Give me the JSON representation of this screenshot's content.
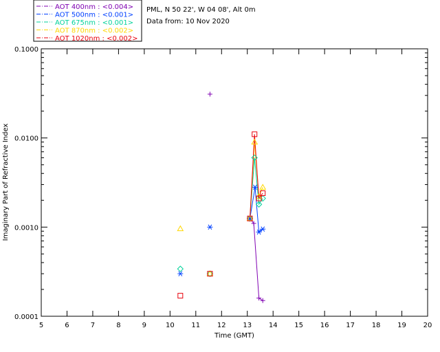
{
  "chart_data": {
    "type": "scatter",
    "header": {
      "line1": "PML, N 50 22', W 04 08', Alt 0m",
      "line2": "Data from: 10 Nov 2020"
    },
    "xlabel": "Time (GMT)",
    "ylabel": "Imaginary Part of Refractive Index",
    "xlim": [
      5,
      20
    ],
    "ylim": [
      0.0001,
      0.1
    ],
    "yscale": "log",
    "x_ticks": [
      "5",
      "6",
      "7",
      "8",
      "9",
      "10",
      "11",
      "12",
      "13",
      "14",
      "15",
      "16",
      "17",
      "18",
      "19",
      "20"
    ],
    "y_ticks": [
      {
        "value": 0.0001,
        "label": "0.0001"
      },
      {
        "value": 0.001,
        "label": "0.0010"
      },
      {
        "value": 0.01,
        "label": "0.0100"
      },
      {
        "value": 0.1,
        "label": "0.1000"
      }
    ],
    "legend_position": "top-left, outside plot",
    "series": [
      {
        "name": "AOT  400nm : <0.004>",
        "color": "#7f00b2",
        "marker": "plus",
        "points": [
          [
            11.55,
            0.031
          ],
          [
            13.1,
            0.00125
          ],
          [
            13.25,
            0.0011
          ],
          [
            13.45,
            0.00016
          ],
          [
            13.6,
            0.00015
          ]
        ],
        "line": [
          [
            13.1,
            0.00125
          ],
          [
            13.25,
            0.0011
          ],
          [
            13.45,
            0.00016
          ],
          [
            13.6,
            0.00015
          ]
        ]
      },
      {
        "name": "AOT  500nm : <0.001>",
        "color": "#0040ff",
        "marker": "asterisk",
        "points": [
          [
            10.4,
            0.0003
          ],
          [
            11.55,
            0.001
          ],
          [
            13.1,
            0.00125
          ],
          [
            13.3,
            0.0028
          ],
          [
            13.45,
            0.00088
          ],
          [
            13.6,
            0.00095
          ]
        ],
        "line": [
          [
            13.1,
            0.00125
          ],
          [
            13.3,
            0.0028
          ],
          [
            13.45,
            0.00088
          ],
          [
            13.6,
            0.00095
          ]
        ]
      },
      {
        "name": "AOT  675nm : <0.001>",
        "color": "#00d29a",
        "marker": "diamond",
        "points": [
          [
            10.4,
            0.00034
          ],
          [
            11.55,
            0.0003
          ],
          [
            13.1,
            0.00125
          ],
          [
            13.28,
            0.006
          ],
          [
            13.45,
            0.0018
          ],
          [
            13.6,
            0.0021
          ]
        ],
        "line": [
          [
            13.1,
            0.00125
          ],
          [
            13.28,
            0.006
          ],
          [
            13.45,
            0.0018
          ],
          [
            13.6,
            0.0021
          ]
        ]
      },
      {
        "name": "AOT  870nm : <0.002>",
        "color": "#ffd700",
        "marker": "triangle",
        "points": [
          [
            10.4,
            0.00096
          ],
          [
            11.55,
            0.0003
          ],
          [
            13.1,
            0.00125
          ],
          [
            13.28,
            0.009
          ],
          [
            13.45,
            0.0022
          ],
          [
            13.6,
            0.0028
          ]
        ],
        "line": [
          [
            13.1,
            0.00125
          ],
          [
            13.28,
            0.009
          ],
          [
            13.45,
            0.0022
          ],
          [
            13.6,
            0.0028
          ]
        ]
      },
      {
        "name": "AOT 1020nm : <0.002>",
        "color": "#e8000b",
        "marker": "square",
        "points": [
          [
            10.4,
            0.00017
          ],
          [
            11.55,
            0.0003
          ],
          [
            13.1,
            0.00125
          ],
          [
            13.28,
            0.011
          ],
          [
            13.45,
            0.0021
          ],
          [
            13.6,
            0.0024
          ]
        ],
        "line": [
          [
            13.1,
            0.00125
          ],
          [
            13.28,
            0.011
          ],
          [
            13.45,
            0.0021
          ],
          [
            13.6,
            0.0024
          ]
        ]
      }
    ]
  }
}
